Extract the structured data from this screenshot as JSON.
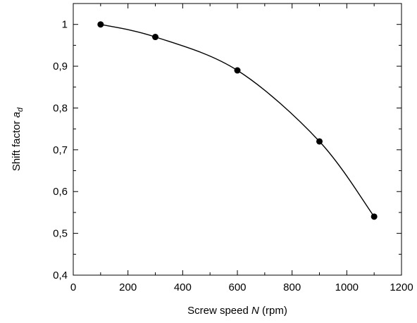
{
  "chart_data": {
    "type": "scatter",
    "xlabel_parts": [
      "Screw speed ",
      "N",
      " (rpm)"
    ],
    "ylabel_parts": [
      "Shift factor ",
      "a",
      "d"
    ],
    "xlim": [
      0,
      1200
    ],
    "ylim": [
      0.4,
      1.05
    ],
    "x_ticks": [
      0,
      200,
      400,
      600,
      800,
      1000,
      1200
    ],
    "x_tick_labels": [
      "0",
      "200",
      "400",
      "600",
      "800",
      "1000",
      "1200"
    ],
    "y_ticks": [
      0.4,
      0.5,
      0.6,
      0.7,
      0.8,
      0.9,
      1.0
    ],
    "y_tick_labels": [
      "0,4",
      "0,5",
      "0,6",
      "0,7",
      "0,8",
      "0,9",
      "1"
    ],
    "grid": false,
    "legend": "none",
    "series": [
      {
        "x": [
          100,
          300,
          600,
          900,
          1100
        ],
        "y": [
          1.0,
          0.97,
          0.89,
          0.72,
          0.54
        ],
        "marker": "filled-circle",
        "line": "smooth-fit",
        "color": "#000000"
      }
    ]
  }
}
